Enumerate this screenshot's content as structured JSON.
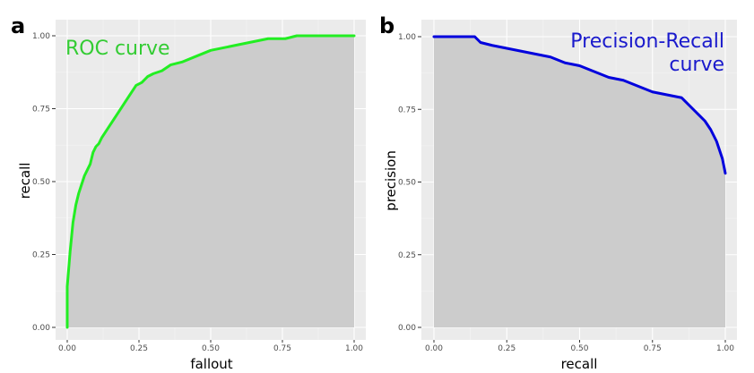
{
  "chart_data": [
    {
      "panel": "a",
      "type": "line",
      "title": "ROC curve",
      "xlabel": "fallout",
      "ylabel": "recall",
      "xlim": [
        0,
        1
      ],
      "ylim": [
        0,
        1
      ],
      "xticks": [
        "0.00",
        "0.25",
        "0.50",
        "0.75",
        "1.00"
      ],
      "yticks": [
        "0.00",
        "0.25",
        "0.50",
        "0.75",
        "1.00"
      ],
      "grid": true,
      "area_fill": true,
      "line_color": "#22ee22",
      "title_color": "#33cc33",
      "fill_color": "#cccccc",
      "panel_bg": "#ebebeb",
      "series": [
        {
          "x": [
            0,
            0,
            0.005,
            0.01,
            0.015,
            0.02,
            0.03,
            0.04,
            0.05,
            0.06,
            0.07,
            0.08,
            0.09,
            0.1,
            0.11,
            0.12,
            0.14,
            0.16,
            0.18,
            0.2,
            0.22,
            0.24,
            0.26,
            0.28,
            0.3,
            0.33,
            0.36,
            0.4,
            0.45,
            0.5,
            0.55,
            0.6,
            0.65,
            0.7,
            0.76,
            0.8,
            0.85,
            0.9,
            1
          ],
          "y": [
            0,
            0.14,
            0.2,
            0.26,
            0.31,
            0.36,
            0.42,
            0.46,
            0.49,
            0.52,
            0.54,
            0.56,
            0.6,
            0.62,
            0.63,
            0.65,
            0.68,
            0.71,
            0.74,
            0.77,
            0.8,
            0.83,
            0.84,
            0.86,
            0.87,
            0.88,
            0.9,
            0.91,
            0.93,
            0.95,
            0.96,
            0.97,
            0.98,
            0.99,
            0.99,
            1,
            1,
            1,
            1
          ]
        }
      ]
    },
    {
      "panel": "b",
      "type": "line",
      "title": "Precision-Recall\ncurve",
      "xlabel": "recall",
      "ylabel": "precision",
      "xlim": [
        0,
        1
      ],
      "ylim": [
        0,
        1
      ],
      "xticks": [
        "0.00",
        "0.25",
        "0.50",
        "0.75",
        "1.00"
      ],
      "yticks": [
        "0.00",
        "0.25",
        "0.50",
        "0.75",
        "1.00"
      ],
      "grid": true,
      "area_fill": true,
      "line_color": "#0000dd",
      "title_color": "#1a1acc",
      "fill_color": "#cccccc",
      "panel_bg": "#ebebeb",
      "series": [
        {
          "x": [
            0,
            0.05,
            0.1,
            0.14,
            0.16,
            0.2,
            0.25,
            0.3,
            0.35,
            0.4,
            0.45,
            0.5,
            0.55,
            0.6,
            0.65,
            0.7,
            0.75,
            0.8,
            0.85,
            0.88,
            0.9,
            0.93,
            0.95,
            0.97,
            0.98,
            0.99,
            1
          ],
          "y": [
            1,
            1,
            1,
            1,
            0.98,
            0.97,
            0.96,
            0.95,
            0.94,
            0.93,
            0.91,
            0.9,
            0.88,
            0.86,
            0.85,
            0.83,
            0.81,
            0.8,
            0.79,
            0.76,
            0.74,
            0.71,
            0.68,
            0.64,
            0.61,
            0.58,
            0.53
          ]
        }
      ]
    }
  ]
}
